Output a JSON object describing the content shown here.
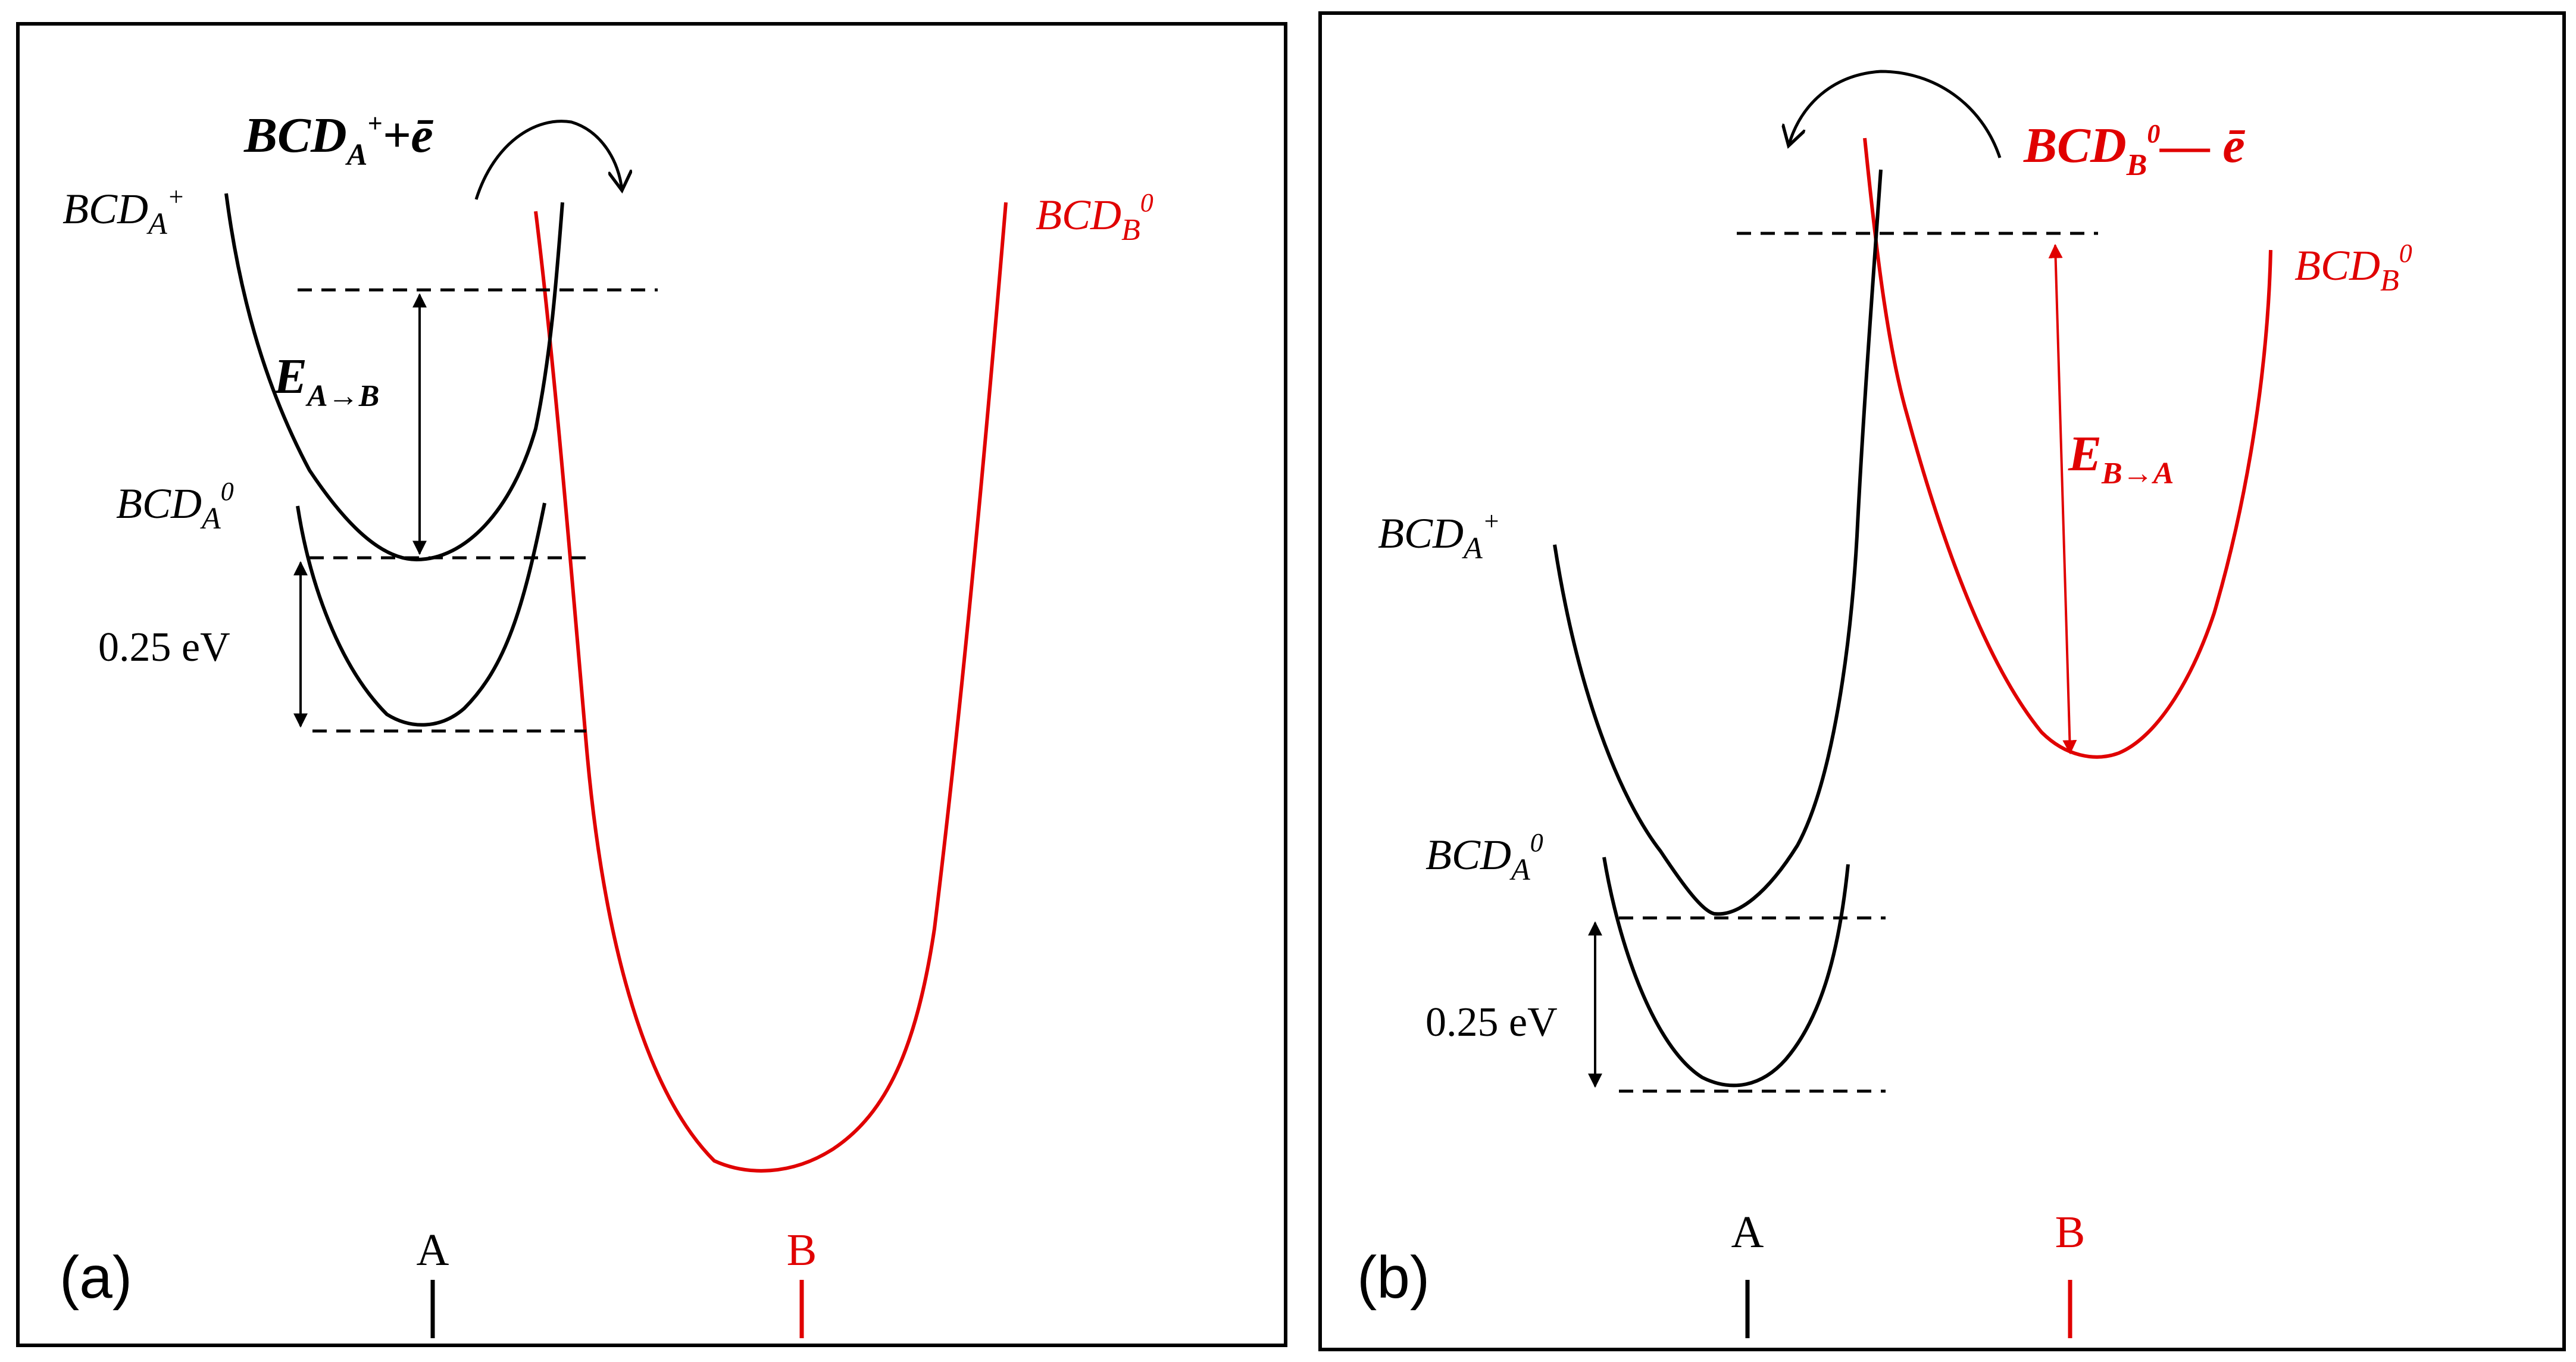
{
  "colors": {
    "black": "#000000",
    "red": "#e00000"
  },
  "panel_a": {
    "panel_label": "(a)",
    "process": {
      "base": "BCD",
      "sub": "A",
      "sup": "+",
      "suffix": "+ē"
    },
    "curve_labels": {
      "ion": {
        "base": "BCD",
        "sub": "A",
        "sup": "+"
      },
      "neutral": {
        "base": "BCD",
        "sub": "A",
        "sup": "0"
      },
      "target": {
        "base": "BCD",
        "sub": "B",
        "sup": "0"
      }
    },
    "energy_label": {
      "base": "E",
      "sub": "A→B"
    },
    "gap_label": "0.25 eV",
    "axis": {
      "a": "A",
      "b": "B"
    }
  },
  "panel_b": {
    "panel_label": "(b)",
    "process": {
      "base": "BCD",
      "sub": "B",
      "sup": "0",
      "suffix": "— ē"
    },
    "curve_labels": {
      "ion": {
        "base": "BCD",
        "sub": "A",
        "sup": "+"
      },
      "neutral": {
        "base": "BCD",
        "sub": "A",
        "sup": "0"
      },
      "target": {
        "base": "BCD",
        "sub": "B",
        "sup": "0"
      }
    },
    "energy_label": {
      "base": "E",
      "sub": "B→A"
    },
    "gap_label": "0.25 eV",
    "axis": {
      "a": "A",
      "b": "B"
    }
  }
}
